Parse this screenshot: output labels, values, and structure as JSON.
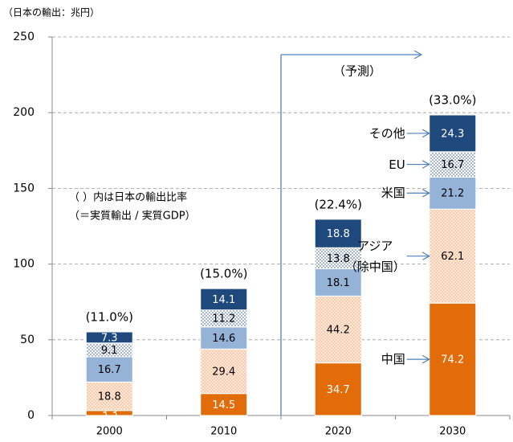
{
  "chart_data": {
    "type": "stacked_bar",
    "unit_note": "（日本の輸出：兆円）",
    "forecast_label": "（予測）",
    "note_lines": [
      "（ ）内は日本の輸出比率",
      "（＝実質輸出 / 実質GDP）"
    ],
    "categories": [
      "2000",
      "2010",
      "2020",
      "2030"
    ],
    "top_labels": [
      "(11.0%)",
      "(15.0%)",
      "(22.4%)",
      "(33.0%)"
    ],
    "series": [
      {
        "name": "中国",
        "color": "#E36C0A",
        "label_color": "#ffffff",
        "values": [
          3.3,
          14.5,
          34.7,
          74.2
        ]
      },
      {
        "name": "アジア\n（除中国）",
        "color": "#FDE9D9",
        "pattern": "dots-peach",
        "label_color": "#000000",
        "values": [
          18.8,
          29.4,
          44.2,
          62.1
        ]
      },
      {
        "name": "米国",
        "color": "#95B3D7",
        "label_color": "#000000",
        "values": [
          16.7,
          14.6,
          18.1,
          21.2
        ]
      },
      {
        "name": "EU",
        "color": "#ffffff",
        "pattern": "dots-blue",
        "label_color": "#000000",
        "values": [
          9.1,
          11.2,
          13.8,
          16.7
        ]
      },
      {
        "name": "その他",
        "color": "#1F497D",
        "label_color": "#ffffff",
        "values": [
          7.3,
          14.1,
          18.8,
          24.3
        ]
      }
    ],
    "ylim": [
      0,
      250
    ],
    "yticks": [
      0,
      50,
      100,
      150,
      200,
      250
    ],
    "grid": true
  }
}
